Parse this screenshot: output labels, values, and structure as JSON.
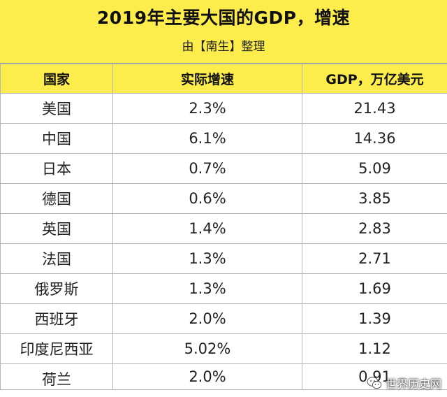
{
  "header": {
    "title": "2019年主要大国的GDP，增速",
    "subtitle": "由【南生】整理"
  },
  "table": {
    "columns": [
      "国家",
      "实际增速",
      "GDP，万亿美元"
    ],
    "rows": [
      {
        "country": "美国",
        "growth": "2.3%",
        "gdp": "21.43"
      },
      {
        "country": "中国",
        "growth": "6.1%",
        "gdp": "14.36"
      },
      {
        "country": "日本",
        "growth": "0.7%",
        "gdp": "5.09"
      },
      {
        "country": "德国",
        "growth": "0.6%",
        "gdp": "3.85"
      },
      {
        "country": "英国",
        "growth": "1.4%",
        "gdp": "2.83"
      },
      {
        "country": "法国",
        "growth": "1.3%",
        "gdp": "2.71"
      },
      {
        "country": "俄罗斯",
        "growth": "1.3%",
        "gdp": "1.69"
      },
      {
        "country": "西班牙",
        "growth": "2.0%",
        "gdp": "1.39"
      },
      {
        "country": "印度尼西亚",
        "growth": "5.02%",
        "gdp": "1.12"
      },
      {
        "country": "荷兰",
        "growth": "2.0%",
        "gdp": "0.91"
      }
    ]
  },
  "watermark": {
    "text": "世界历史网",
    "icon": "wechat-icon"
  },
  "colors": {
    "header_bg": "#fcec4c",
    "grid": "#b5b5b5"
  }
}
